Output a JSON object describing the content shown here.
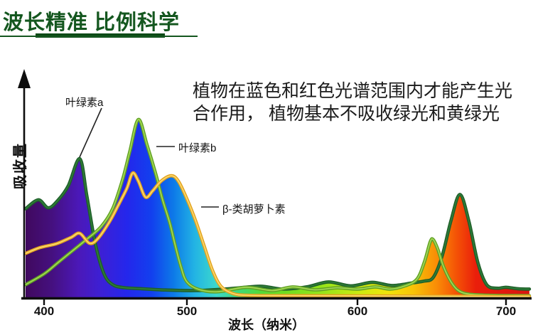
{
  "page": {
    "title": "波长精准 比例科学",
    "description_line1": "植物在蓝色和红色光谱范围内才能产生光",
    "description_line2": "合作用， 植物基本不吸收绿光和黄绿光"
  },
  "colors": {
    "title_green": "#14571f",
    "chlorophyll_a_stroke": "#1e5e29",
    "chlorophyll_b_stroke": "#61a124",
    "beta_carotene_stroke": "#e3a21f",
    "axis": "#111111"
  },
  "chart_data": {
    "type": "area",
    "xlabel": "波长（纳米）",
    "ylabel": "吸收量",
    "x_ticks": [
      "400",
      "500",
      "600",
      "700"
    ],
    "xlim": [
      387,
      717
    ],
    "ylim": [
      0,
      1.05
    ],
    "grid": false,
    "legend_position": "callout-labels",
    "annotations": [
      {
        "label": "叶绿素a",
        "target_nm": 425
      },
      {
        "label": "叶绿素b",
        "target_nm": 466
      },
      {
        "label": "β-类胡萝卜素",
        "target_nm": 489
      }
    ],
    "series": [
      {
        "key": "chlorophyll_a",
        "name": "叶绿素a",
        "stroke": "#1e5e29",
        "stroke_inner": "#2f7d38",
        "points": [
          [
            387,
            0.5
          ],
          [
            396,
            0.55
          ],
          [
            403,
            0.505
          ],
          [
            410,
            0.55
          ],
          [
            417,
            0.63
          ],
          [
            425,
            0.78
          ],
          [
            430,
            0.57
          ],
          [
            436,
            0.3
          ],
          [
            442,
            0.135
          ],
          [
            448,
            0.075
          ],
          [
            456,
            0.058
          ],
          [
            468,
            0.052
          ],
          [
            485,
            0.045
          ],
          [
            505,
            0.042
          ],
          [
            525,
            0.052
          ],
          [
            543,
            0.066
          ],
          [
            556,
            0.05
          ],
          [
            570,
            0.062
          ],
          [
            583,
            0.09
          ],
          [
            596,
            0.068
          ],
          [
            610,
            0.088
          ],
          [
            623,
            0.07
          ],
          [
            637,
            0.085
          ],
          [
            645,
            0.095
          ],
          [
            651,
            0.115
          ],
          [
            657,
            0.235
          ],
          [
            663,
            0.435
          ],
          [
            669,
            0.58
          ],
          [
            675,
            0.43
          ],
          [
            681,
            0.2
          ],
          [
            687,
            0.075
          ],
          [
            694,
            0.055
          ],
          [
            700,
            0.06
          ],
          [
            708,
            0.052
          ],
          [
            716,
            0.05
          ]
        ]
      },
      {
        "key": "chlorophyll_b",
        "name": "叶绿素b",
        "stroke": "#61a124",
        "stroke_inner": "#a2d855",
        "points": [
          [
            387,
            0.075
          ],
          [
            400,
            0.135
          ],
          [
            410,
            0.2
          ],
          [
            420,
            0.265
          ],
          [
            430,
            0.33
          ],
          [
            440,
            0.4
          ],
          [
            448,
            0.5
          ],
          [
            455,
            0.665
          ],
          [
            460,
            0.82
          ],
          [
            466,
            1.0
          ],
          [
            472,
            0.86
          ],
          [
            478,
            0.7
          ],
          [
            483,
            0.55
          ],
          [
            488,
            0.42
          ],
          [
            492,
            0.29
          ],
          [
            496,
            0.17
          ],
          [
            500,
            0.09
          ],
          [
            507,
            0.048
          ],
          [
            518,
            0.035
          ],
          [
            535,
            0.06
          ],
          [
            550,
            0.042
          ],
          [
            562,
            0.062
          ],
          [
            575,
            0.046
          ],
          [
            588,
            0.057
          ],
          [
            600,
            0.05
          ],
          [
            612,
            0.062
          ],
          [
            622,
            0.05
          ],
          [
            632,
            0.068
          ],
          [
            640,
            0.105
          ],
          [
            645,
            0.2
          ],
          [
            649,
            0.315
          ],
          [
            651,
            0.327
          ],
          [
            654,
            0.275
          ],
          [
            658,
            0.175
          ],
          [
            663,
            0.09
          ],
          [
            668,
            0.042
          ],
          [
            675,
            0.022
          ],
          [
            688,
            0.016
          ],
          [
            702,
            0.014
          ],
          [
            716,
            0.013
          ]
        ]
      },
      {
        "key": "beta_carotene",
        "name": "β-类胡萝卜素",
        "stroke": "#e3a21f",
        "stroke_inner": "#f9d96e",
        "points": [
          [
            387,
            0.25
          ],
          [
            397,
            0.282
          ],
          [
            409,
            0.305
          ],
          [
            419,
            0.34
          ],
          [
            425,
            0.362
          ],
          [
            432,
            0.306
          ],
          [
            438,
            0.336
          ],
          [
            446,
            0.43
          ],
          [
            452,
            0.52
          ],
          [
            458,
            0.615
          ],
          [
            462,
            0.7
          ],
          [
            466,
            0.655
          ],
          [
            471,
            0.565
          ],
          [
            476,
            0.6
          ],
          [
            482,
            0.655
          ],
          [
            489,
            0.685
          ],
          [
            494,
            0.655
          ],
          [
            500,
            0.555
          ],
          [
            505,
            0.435
          ],
          [
            510,
            0.295
          ],
          [
            515,
            0.155
          ],
          [
            520,
            0.065
          ],
          [
            527,
            0.025
          ],
          [
            536,
            0.015
          ],
          [
            560,
            0.013
          ],
          [
            600,
            0.012
          ],
          [
            650,
            0.01
          ],
          [
            685,
            0.009
          ],
          [
            716,
            0.009
          ]
        ]
      }
    ]
  }
}
